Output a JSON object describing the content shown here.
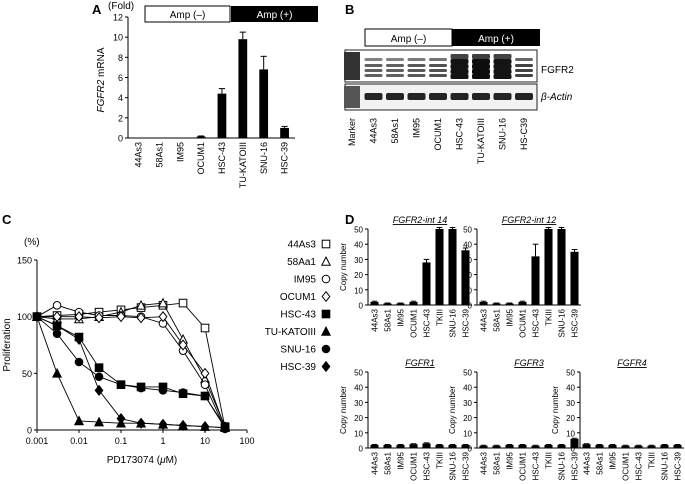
{
  "panel_labels": {
    "a": "A",
    "b": "B",
    "c": "C",
    "d": "D"
  },
  "amp_labels": {
    "neg": "Amp (–)",
    "pos": "Amp (+)"
  },
  "chart_data": [
    {
      "id": "A",
      "type": "bar",
      "title": "",
      "ylabel_gene": "FGFR2",
      "ylabel_suffix": " mRNA",
      "yunit": "(Fold)",
      "ylim": [
        0,
        12
      ],
      "yticks": [
        "0",
        "2",
        "4",
        "6",
        "8",
        "10",
        "12"
      ],
      "categories": [
        "44As3",
        "58As1",
        "IM95",
        "OCUM1",
        "HSC-43",
        "TU-KATOIII",
        "SNU-16",
        "HSC-39"
      ],
      "values": [
        0.02,
        0.02,
        0.03,
        0.15,
        4.4,
        9.8,
        6.8,
        1.0
      ],
      "errors": [
        0.0,
        0.0,
        0.0,
        0.05,
        0.5,
        0.7,
        1.3,
        0.15
      ]
    },
    {
      "id": "B",
      "type": "blot",
      "lanes": [
        "Marker",
        "44As3",
        "58As1",
        "IM95",
        "OCUM1",
        "HSC-43",
        "TU-KATOIII",
        "SNU-16",
        "HS-C39"
      ],
      "bands": [
        "FGFR2",
        "β-Actin"
      ]
    },
    {
      "id": "C",
      "type": "line",
      "ylabel": "Proliferation",
      "yunit": "(%)",
      "xlabel_prefix": "PD173074 (",
      "xlabel_mu": "μ",
      "xlabel_suffix": "M)",
      "xscale": "log",
      "xlim": [
        0.001,
        100
      ],
      "ylim": [
        0,
        150
      ],
      "xticks": [
        "0.001",
        "0.01",
        "0.1",
        "1",
        "10",
        "100"
      ],
      "yticks": [
        "0",
        "50",
        "100",
        "150"
      ],
      "x": [
        0.001,
        0.003,
        0.01,
        0.03,
        0.1,
        0.3,
        1,
        3,
        10,
        30
      ],
      "series": [
        {
          "name": "44As3",
          "marker": "square-open",
          "values": [
            100,
            101,
            102,
            104,
            106,
            108,
            110,
            112,
            90,
            2
          ]
        },
        {
          "name": "58Aa1",
          "marker": "triangle-open",
          "values": [
            100,
            98,
            98,
            100,
            104,
            110,
            112,
            80,
            45,
            3
          ]
        },
        {
          "name": "IM95",
          "marker": "circle-open",
          "values": [
            100,
            110,
            104,
            101,
            101,
            100,
            94,
            70,
            40,
            1
          ]
        },
        {
          "name": "OCUM1",
          "marker": "diamond-open",
          "values": [
            100,
            100,
            100,
            99,
            100,
            99,
            100,
            75,
            50,
            2
          ]
        },
        {
          "name": "HSC-43",
          "marker": "square-filled",
          "values": [
            100,
            92,
            82,
            55,
            40,
            38,
            38,
            32,
            30,
            3
          ]
        },
        {
          "name": "TU-KATOIII",
          "marker": "triangle-filled",
          "values": [
            100,
            50,
            8,
            7,
            6,
            6,
            5,
            4,
            3,
            2
          ]
        },
        {
          "name": "SNU-16",
          "marker": "circle-filled",
          "values": [
            100,
            85,
            60,
            47,
            40,
            37,
            35,
            33,
            30,
            2
          ]
        },
        {
          "name": "HSC-39",
          "marker": "diamond-filled",
          "values": [
            100,
            92,
            80,
            35,
            10,
            6,
            5,
            4,
            3,
            2
          ]
        }
      ]
    },
    {
      "id": "D1",
      "type": "bar",
      "title": "FGFR2-int 14",
      "ylabel": "Copy number",
      "ylim": [
        0,
        50
      ],
      "yticks": [
        "0",
        "10",
        "20",
        "30",
        "40",
        "50"
      ],
      "categories": [
        "44As3",
        "58As1",
        "IM95",
        "OCUM1",
        "HSC-43",
        "TKIII",
        "SNU-16",
        "HSC-39"
      ],
      "values": [
        2,
        1,
        1,
        2,
        28,
        50,
        50,
        36
      ],
      "errors": [
        0.5,
        0.3,
        0.3,
        0.5,
        2,
        1,
        1,
        1.5
      ]
    },
    {
      "id": "D2",
      "type": "bar",
      "title": "FGFR2-int 12",
      "ylabel": "",
      "ylim": [
        0,
        50
      ],
      "yticks": [
        "0",
        "10",
        "20",
        "30",
        "40",
        "50"
      ],
      "categories": [
        "44As3",
        "58As1",
        "IM95",
        "OCUM1",
        "HSC-43",
        "TKIII",
        "SNU-16",
        "HSC-39"
      ],
      "values": [
        2,
        1,
        1,
        2,
        32,
        50,
        50,
        35
      ],
      "errors": [
        0.5,
        0.3,
        0.3,
        0.5,
        8,
        1,
        1,
        1.5
      ]
    },
    {
      "id": "D3",
      "type": "bar",
      "title": "FGFR1",
      "ylabel": "Copy number",
      "ylim": [
        0,
        50
      ],
      "yticks": [
        "0",
        "10",
        "20",
        "30",
        "40",
        "50"
      ],
      "categories": [
        "44As3",
        "58As1",
        "IM95",
        "OCUM1",
        "HSC-43",
        "TKIII",
        "SNU-16",
        "HSC-39"
      ],
      "values": [
        2,
        2,
        2,
        2.5,
        3,
        2,
        2,
        2
      ],
      "errors": [
        0.3,
        0.3,
        0.3,
        0.3,
        0.4,
        0.3,
        0.3,
        0.3
      ]
    },
    {
      "id": "D4",
      "type": "bar",
      "title": "FGFR3",
      "ylabel": "Copy number",
      "ylim": [
        0,
        50
      ],
      "yticks": [
        "0",
        "10",
        "20",
        "30",
        "40",
        "50"
      ],
      "categories": [
        "44As3",
        "58As1",
        "IM95",
        "OCUM1",
        "HSC-43",
        "TKIII",
        "SNU-16",
        "HSC-39"
      ],
      "values": [
        1.5,
        1.5,
        2,
        2,
        1.5,
        2,
        2,
        6
      ],
      "errors": [
        0.3,
        0.3,
        0.3,
        0.3,
        0.3,
        0.3,
        0.3,
        0.4
      ]
    },
    {
      "id": "D5",
      "type": "bar",
      "title": "FGFR4",
      "ylabel": "Copy number",
      "ylim": [
        0,
        50
      ],
      "yticks": [
        "0",
        "10",
        "20",
        "30",
        "40",
        "50"
      ],
      "categories": [
        "44As3",
        "58As1",
        "IM95",
        "OCUM1",
        "HSC-43",
        "TKIII",
        "SNU-16",
        "HSC-39"
      ],
      "values": [
        2.5,
        2,
        2,
        1.5,
        1.5,
        1.5,
        2,
        2
      ],
      "errors": [
        0.3,
        0.3,
        0.3,
        0.3,
        0.3,
        0.3,
        0.3,
        0.3
      ]
    }
  ]
}
